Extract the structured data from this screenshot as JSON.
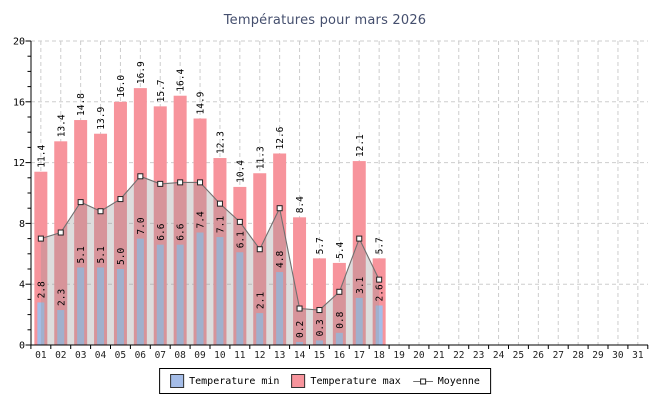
{
  "chart_data": {
    "type": "bar",
    "title": "Températures pour mars 2026",
    "x_categories": [
      "01",
      "02",
      "03",
      "04",
      "05",
      "06",
      "07",
      "08",
      "09",
      "10",
      "11",
      "12",
      "13",
      "14",
      "15",
      "16",
      "17",
      "18",
      "19",
      "20",
      "21",
      "22",
      "23",
      "24",
      "25",
      "26",
      "27",
      "28",
      "29",
      "30",
      "31"
    ],
    "series": [
      {
        "name": "Temperature min",
        "type": "bar",
        "color": "#a5bde8",
        "values": [
          2.8,
          2.3,
          5.1,
          5.1,
          5.0,
          7.0,
          6.6,
          6.6,
          7.4,
          7.1,
          6.1,
          2.1,
          4.8,
          0.2,
          0.3,
          0.8,
          3.1,
          2.6
        ]
      },
      {
        "name": "Temperature max",
        "type": "bar",
        "color": "#f7949c",
        "values": [
          11.4,
          13.4,
          14.8,
          13.9,
          16.0,
          16.9,
          15.7,
          16.4,
          14.9,
          12.3,
          10.4,
          11.3,
          12.6,
          8.4,
          5.7,
          5.4,
          12.1,
          5.7
        ]
      },
      {
        "name": "Moyenne",
        "type": "line-area",
        "color": "#707070",
        "fill": "rgba(150,150,150,0.32)",
        "values": [
          7.0,
          7.4,
          9.4,
          8.8,
          9.6,
          11.1,
          10.6,
          10.7,
          10.7,
          9.3,
          8.1,
          6.3,
          9.0,
          2.4,
          2.3,
          3.5,
          7.0,
          4.3
        ]
      }
    ],
    "ylim": [
      0,
      20
    ],
    "yticks": [
      0,
      4,
      8,
      12,
      16,
      20
    ],
    "minor_y_step": 1,
    "grid": "dashed",
    "legend_position": "bottom-center",
    "value_labels": "rotated-90",
    "colors": {
      "grid": "#cdcdcd",
      "axis": "#000000",
      "title": "#454f6e",
      "label": "#000000"
    }
  }
}
